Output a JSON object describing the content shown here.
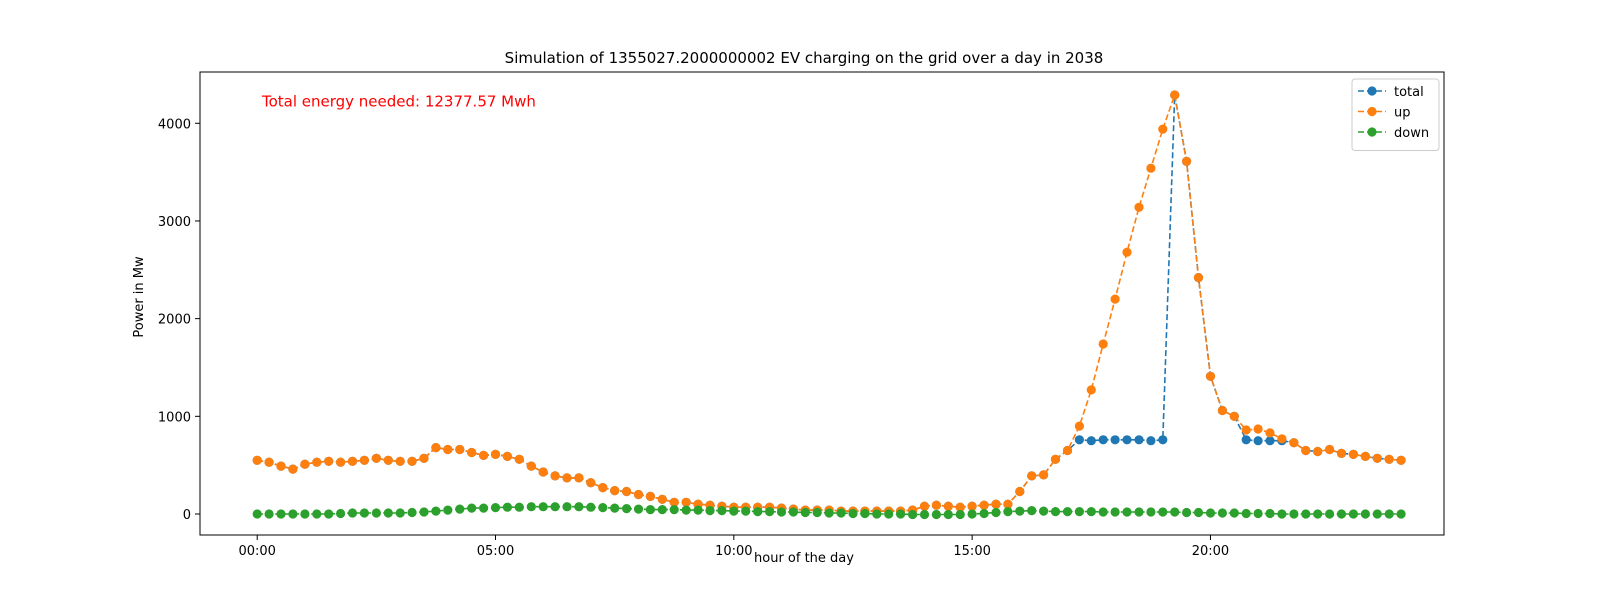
{
  "chart_data": {
    "type": "line",
    "title": "Simulation of 1355027.2000000002 EV charging on the grid over a day in 2038",
    "xlabel": "hour of the day",
    "ylabel": "Power in Mw",
    "x_unit": "hours",
    "xlim": [
      -1.2,
      24.9
    ],
    "ylim": [
      -215,
      4525
    ],
    "x_ticks": [
      {
        "value": 0,
        "label": "00:00"
      },
      {
        "value": 5,
        "label": "05:00"
      },
      {
        "value": 10,
        "label": "10:00"
      },
      {
        "value": 15,
        "label": "15:00"
      },
      {
        "value": 20,
        "label": "20:00"
      }
    ],
    "y_ticks": [
      {
        "value": 0,
        "label": "0"
      },
      {
        "value": 1000,
        "label": "1000"
      },
      {
        "value": 2000,
        "label": "2000"
      },
      {
        "value": 3000,
        "label": "3000"
      },
      {
        "value": 4000,
        "label": "4000"
      }
    ],
    "grid": false,
    "legend_position": "top-right",
    "annotation": {
      "text": "Total energy needed: 12377.57 Mwh",
      "color": "#ff0000",
      "x": 0.1,
      "y": 4170
    },
    "series": [
      {
        "name": "total",
        "color": "#1f77b4",
        "x_start": 0,
        "x_step": 0.25,
        "values": [
          550,
          530,
          490,
          460,
          510,
          530,
          540,
          530,
          540,
          550,
          570,
          550,
          540,
          540,
          570,
          680,
          660,
          660,
          630,
          600,
          610,
          590,
          560,
          490,
          430,
          390,
          370,
          370,
          320,
          270,
          240,
          230,
          200,
          180,
          150,
          120,
          120,
          100,
          90,
          80,
          70,
          70,
          70,
          70,
          60,
          50,
          40,
          40,
          40,
          30,
          30,
          30,
          30,
          30,
          30,
          40,
          80,
          90,
          80,
          70,
          80,
          90,
          100,
          100,
          230,
          390,
          400,
          560,
          650,
          760,
          750,
          760,
          760,
          760,
          760,
          750,
          760,
          4290,
          3610,
          2420,
          1410,
          1060,
          1000,
          760,
          750,
          750,
          750,
          730,
          650,
          640,
          660,
          620,
          610,
          590,
          570,
          560,
          550
        ]
      },
      {
        "name": "up",
        "color": "#ff7f0e",
        "x_start": 0,
        "x_step": 0.25,
        "values": [
          550,
          530,
          490,
          460,
          510,
          530,
          540,
          530,
          540,
          550,
          570,
          550,
          540,
          540,
          570,
          680,
          660,
          660,
          630,
          600,
          610,
          590,
          560,
          490,
          430,
          390,
          370,
          370,
          320,
          270,
          240,
          230,
          200,
          180,
          150,
          120,
          120,
          100,
          90,
          80,
          70,
          70,
          70,
          70,
          60,
          50,
          40,
          40,
          40,
          30,
          30,
          30,
          30,
          30,
          30,
          40,
          80,
          90,
          80,
          70,
          80,
          90,
          100,
          100,
          230,
          390,
          400,
          560,
          650,
          900,
          1270,
          1740,
          2200,
          2680,
          3140,
          3540,
          3940,
          4290,
          3610,
          2420,
          1410,
          1060,
          1000,
          860,
          870,
          830,
          770,
          730,
          650,
          640,
          660,
          620,
          610,
          590,
          570,
          560,
          550
        ]
      },
      {
        "name": "down",
        "color": "#2ca02c",
        "x_start": 0,
        "x_step": 0.25,
        "values": [
          0,
          0,
          0,
          0,
          0,
          0,
          0,
          5,
          10,
          10,
          10,
          10,
          10,
          15,
          20,
          30,
          40,
          50,
          60,
          60,
          65,
          70,
          70,
          75,
          75,
          75,
          75,
          75,
          70,
          65,
          60,
          55,
          50,
          45,
          45,
          45,
          40,
          40,
          35,
          35,
          30,
          30,
          25,
          25,
          20,
          20,
          15,
          15,
          10,
          10,
          5,
          5,
          0,
          0,
          0,
          -5,
          -5,
          -5,
          -5,
          -5,
          0,
          5,
          15,
          25,
          30,
          35,
          30,
          25,
          25,
          25,
          25,
          20,
          20,
          20,
          20,
          20,
          20,
          20,
          15,
          15,
          10,
          10,
          10,
          5,
          5,
          5,
          0,
          0,
          0,
          0,
          0,
          0,
          0,
          0,
          0,
          0,
          0
        ]
      }
    ]
  }
}
